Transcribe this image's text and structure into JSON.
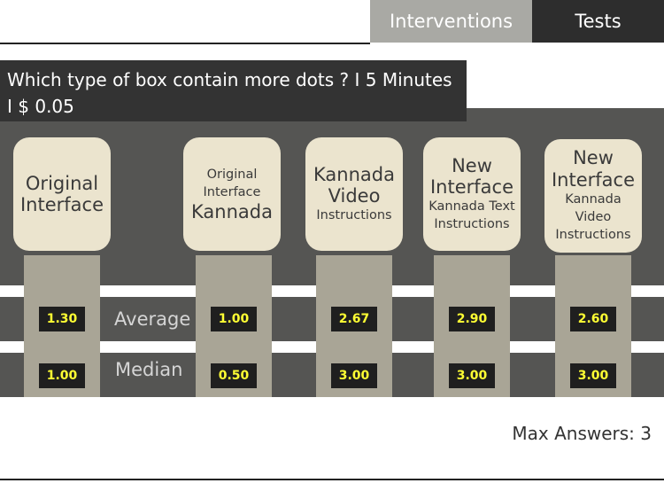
{
  "tabs": [
    {
      "label": "Interventions"
    },
    {
      "label": "Tests"
    }
  ],
  "question": "Which type of box contain more dots ? I 5 Minutes I $ 0.05",
  "row_labels": {
    "average": "Average",
    "median": "Median"
  },
  "cards": [
    {
      "lines": [
        {
          "text": "Original",
          "size": "big"
        },
        {
          "text": "Interface",
          "size": "big"
        }
      ],
      "average": "1.30",
      "median": "1.00"
    },
    {
      "lines": [
        {
          "text": "Original",
          "size": "small"
        },
        {
          "text": "Interface",
          "size": "small"
        },
        {
          "text": "Kannada",
          "size": "big"
        }
      ],
      "average": "1.00",
      "median": "0.50"
    },
    {
      "lines": [
        {
          "text": "Kannada",
          "size": "big"
        },
        {
          "text": "Video",
          "size": "big"
        },
        {
          "text": "Instructions",
          "size": "small"
        }
      ],
      "average": "2.67",
      "median": "3.00"
    },
    {
      "lines": [
        {
          "text": "New",
          "size": "big"
        },
        {
          "text": "Interface",
          "size": "big"
        },
        {
          "text": "Kannada Text",
          "size": "small"
        },
        {
          "text": "Instructions",
          "size": "small"
        }
      ],
      "average": "2.90",
      "median": "3.00"
    },
    {
      "lines": [
        {
          "text": "New",
          "size": "big"
        },
        {
          "text": "Interface",
          "size": "big"
        },
        {
          "text": "Kannada",
          "size": "small"
        },
        {
          "text": "Video",
          "size": "small"
        },
        {
          "text": "Instructions",
          "size": "small"
        }
      ],
      "average": "2.60",
      "median": "3.00"
    }
  ],
  "max_answers": "Max Answers: 3",
  "colors": {
    "panel": "#555553",
    "card": "#ebe4ce",
    "column": "#a9a596",
    "value_text": "#ffff33"
  }
}
